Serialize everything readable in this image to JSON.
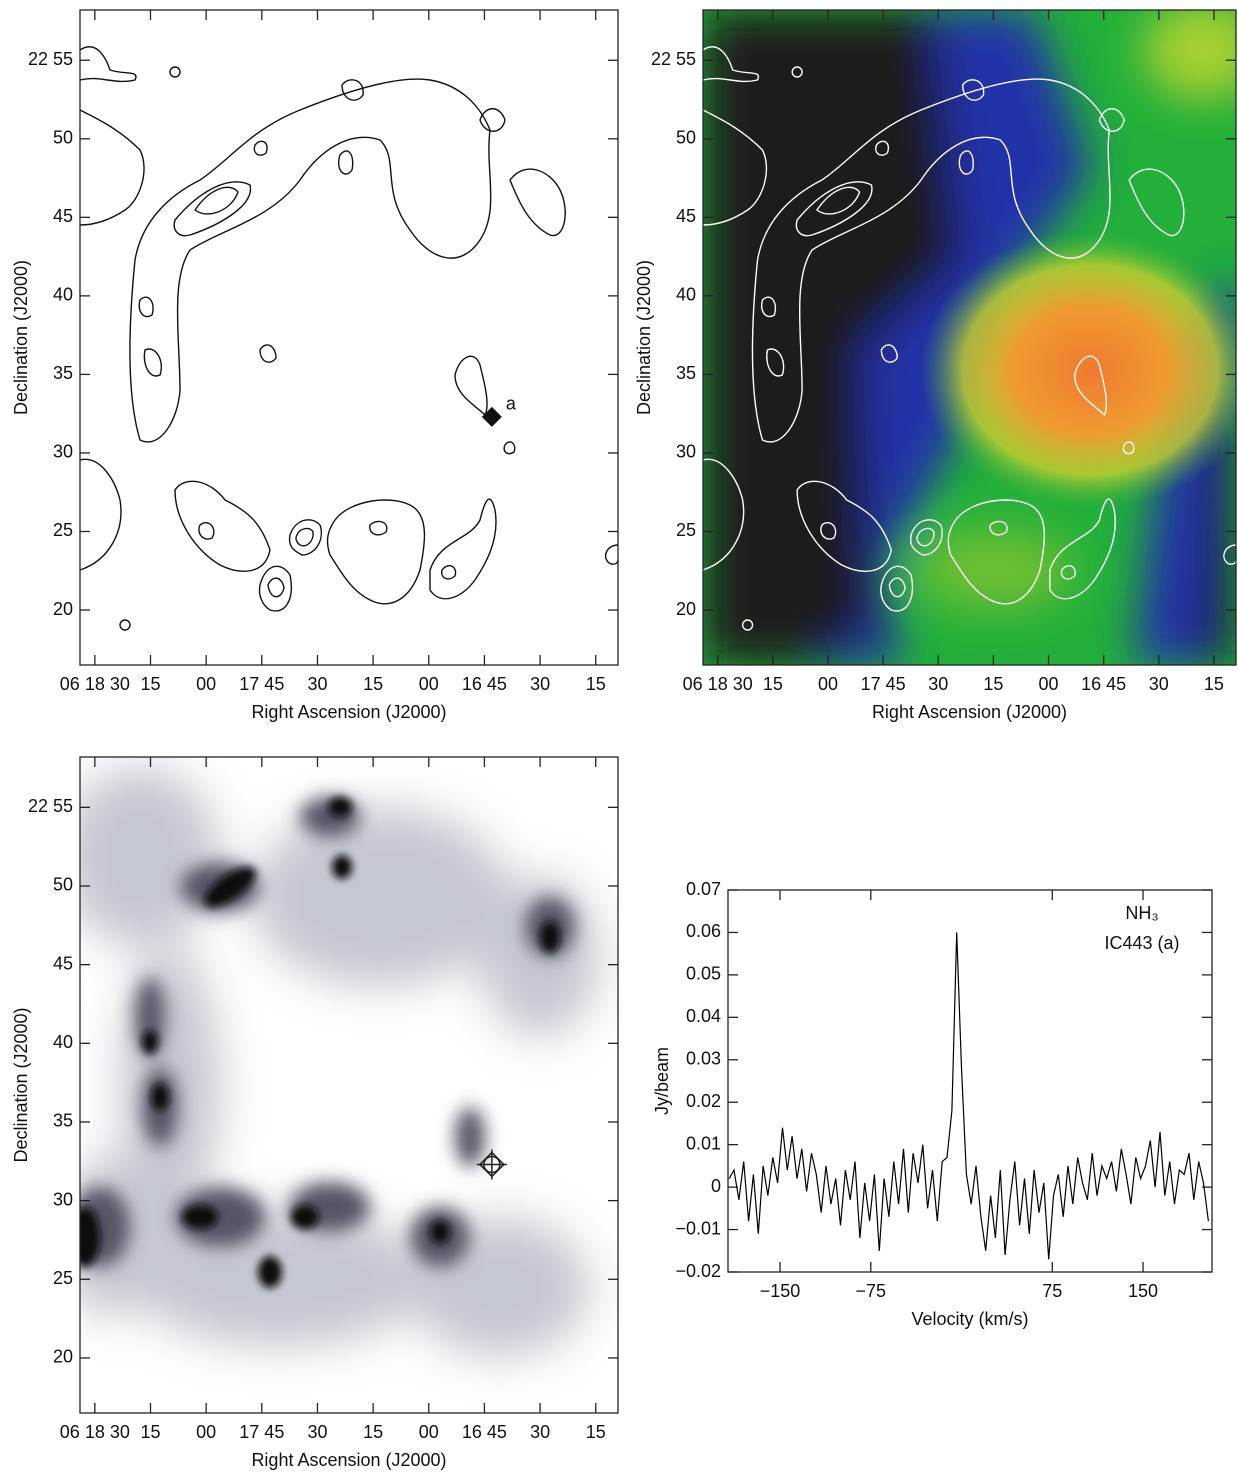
{
  "chart_data": [
    {
      "type": "contour",
      "x_label": "Right Ascension (J2000)",
      "y_label": "Declination (J2000)",
      "xlim": [
        1114,
        969
      ],
      "ylim": [
        16.5,
        58.2
      ],
      "xticks": [
        {
          "value": 1110,
          "label": "06 18 30"
        },
        {
          "value": 1095,
          "label": "15"
        },
        {
          "value": 1080,
          "label": "00"
        },
        {
          "value": 1065,
          "label": "17 45"
        },
        {
          "value": 1050,
          "label": "30"
        },
        {
          "value": 1035,
          "label": "15"
        },
        {
          "value": 1020,
          "label": "00"
        },
        {
          "value": 1005,
          "label": "16 45"
        },
        {
          "value": 990,
          "label": "30"
        },
        {
          "value": 975,
          "label": "15"
        }
      ],
      "yticks": [
        {
          "value": 55,
          "label": "22 55"
        },
        50,
        45,
        40,
        35,
        30,
        25,
        20
      ],
      "markers": [
        {
          "x": 1003,
          "y": 32.3,
          "label": "a"
        }
      ],
      "color": "#000000"
    },
    {
      "type": "contour-image",
      "x_label": "Right Ascension (J2000)",
      "y_label": "Declination (J2000)",
      "xlim": [
        1114,
        969
      ],
      "ylim": [
        16.5,
        58.2
      ],
      "xticks": [
        {
          "value": 1110,
          "label": "06 18 30"
        },
        {
          "value": 1095,
          "label": "15"
        },
        {
          "value": 1080,
          "label": "00"
        },
        {
          "value": 1065,
          "label": "17 45"
        },
        {
          "value": 1050,
          "label": "30"
        },
        {
          "value": 1035,
          "label": "15"
        },
        {
          "value": 1020,
          "label": "00"
        },
        {
          "value": 1005,
          "label": "16 45"
        },
        {
          "value": 990,
          "label": "30"
        },
        {
          "value": 975,
          "label": "15"
        }
      ],
      "yticks": [
        {
          "value": 55,
          "label": "22 55"
        },
        50,
        45,
        40,
        35,
        30,
        25,
        20
      ],
      "color": "#ffffff"
    },
    {
      "type": "image",
      "x_label": "Right Ascension (J2000)",
      "y_label": "Declination (J2000)",
      "xlim": [
        1114,
        969
      ],
      "ylim": [
        16.5,
        58.2
      ],
      "xticks": [
        {
          "value": 1110,
          "label": "06 18 30"
        },
        {
          "value": 1095,
          "label": "15"
        },
        {
          "value": 1080,
          "label": "00"
        },
        {
          "value": 1065,
          "label": "17 45"
        },
        {
          "value": 1050,
          "label": "30"
        },
        {
          "value": 1035,
          "label": "15"
        },
        {
          "value": 1020,
          "label": "00"
        },
        {
          "value": 1005,
          "label": "16 45"
        },
        {
          "value": 990,
          "label": "30"
        },
        {
          "value": 975,
          "label": "15"
        }
      ],
      "yticks": [
        {
          "value": 55,
          "label": "22 55"
        },
        50,
        45,
        40,
        35,
        30,
        25,
        20
      ],
      "markers": [
        {
          "x": 1003,
          "y": 32.3
        }
      ]
    },
    {
      "type": "line",
      "x_label": "Velocity (km/s)",
      "y_label": "Jy/beam",
      "annotations": [
        "NH₃",
        "IC443 (a)"
      ],
      "xlim": [
        -193,
        207
      ],
      "ylim": [
        -0.02,
        0.07
      ],
      "xticks": [
        {
          "value": -150,
          "label": "−150"
        },
        {
          "value": -75,
          "label": "−75"
        },
        75,
        150
      ],
      "yticks": [
        {
          "value": -0.02,
          "label": "−0.02"
        },
        {
          "value": -0.01,
          "label": "−0.01"
        },
        0,
        0.01,
        0.02,
        0.03,
        0.04,
        0.05,
        0.06,
        0.07
      ],
      "color": "#000000",
      "x": [
        -192,
        -188,
        -184,
        -180,
        -176,
        -172,
        -168,
        -164,
        -160,
        -156,
        -152,
        -148,
        -144,
        -140,
        -136,
        -132,
        -128,
        -124,
        -120,
        -116,
        -112,
        -108,
        -104,
        -100,
        -96,
        -92,
        -88,
        -84,
        -80,
        -76,
        -72,
        -68,
        -64,
        -60,
        -56,
        -52,
        -48,
        -44,
        -40,
        -36,
        -32,
        -28,
        -24,
        -20,
        -16,
        -12,
        -8,
        -4,
        0,
        4,
        8,
        12,
        16,
        20,
        24,
        28,
        32,
        36,
        40,
        44,
        48,
        52,
        56,
        60,
        64,
        68,
        72,
        76,
        80,
        84,
        88,
        92,
        96,
        100,
        104,
        108,
        112,
        116,
        120,
        124,
        128,
        132,
        136,
        140,
        144,
        148,
        152,
        156,
        160,
        164,
        168,
        172,
        176,
        180,
        184,
        188,
        192,
        196,
        200,
        204
      ],
      "values": [
        0.002,
        0.004,
        -0.003,
        0.006,
        -0.008,
        0.003,
        -0.011,
        0.005,
        -0.002,
        0.007,
        0.001,
        0.014,
        0.004,
        0.012,
        0.002,
        0.009,
        -0.001,
        0.008,
        0.003,
        -0.006,
        0.005,
        -0.004,
        0.002,
        -0.009,
        0.004,
        -0.003,
        0.006,
        -0.012,
        0.001,
        -0.008,
        0.003,
        -0.015,
        0.002,
        -0.007,
        0.006,
        -0.004,
        0.009,
        -0.006,
        0.008,
        0.001,
        0.01,
        -0.005,
        0.004,
        -0.008,
        0.006,
        0.007,
        0.018,
        0.06,
        0.028,
        0.003,
        -0.004,
        0.005,
        -0.007,
        -0.015,
        -0.002,
        -0.012,
        0.004,
        -0.016,
        -0.003,
        0.006,
        -0.009,
        0.002,
        -0.011,
        0.004,
        -0.006,
        0.001,
        -0.017,
        -0.002,
        0.003,
        -0.007,
        0.005,
        -0.004,
        0.007,
        0.001,
        -0.003,
        0.008,
        -0.002,
        0.005,
        0.002,
        0.006,
        -0.001,
        0.009,
        0.003,
        -0.004,
        0.007,
        0.002,
        0.005,
        0.011,
        0.0,
        0.013,
        -0.002,
        0.006,
        -0.004,
        0.004,
        0.003,
        0.008,
        -0.003,
        0.006,
        0.001,
        -0.008
      ]
    }
  ]
}
